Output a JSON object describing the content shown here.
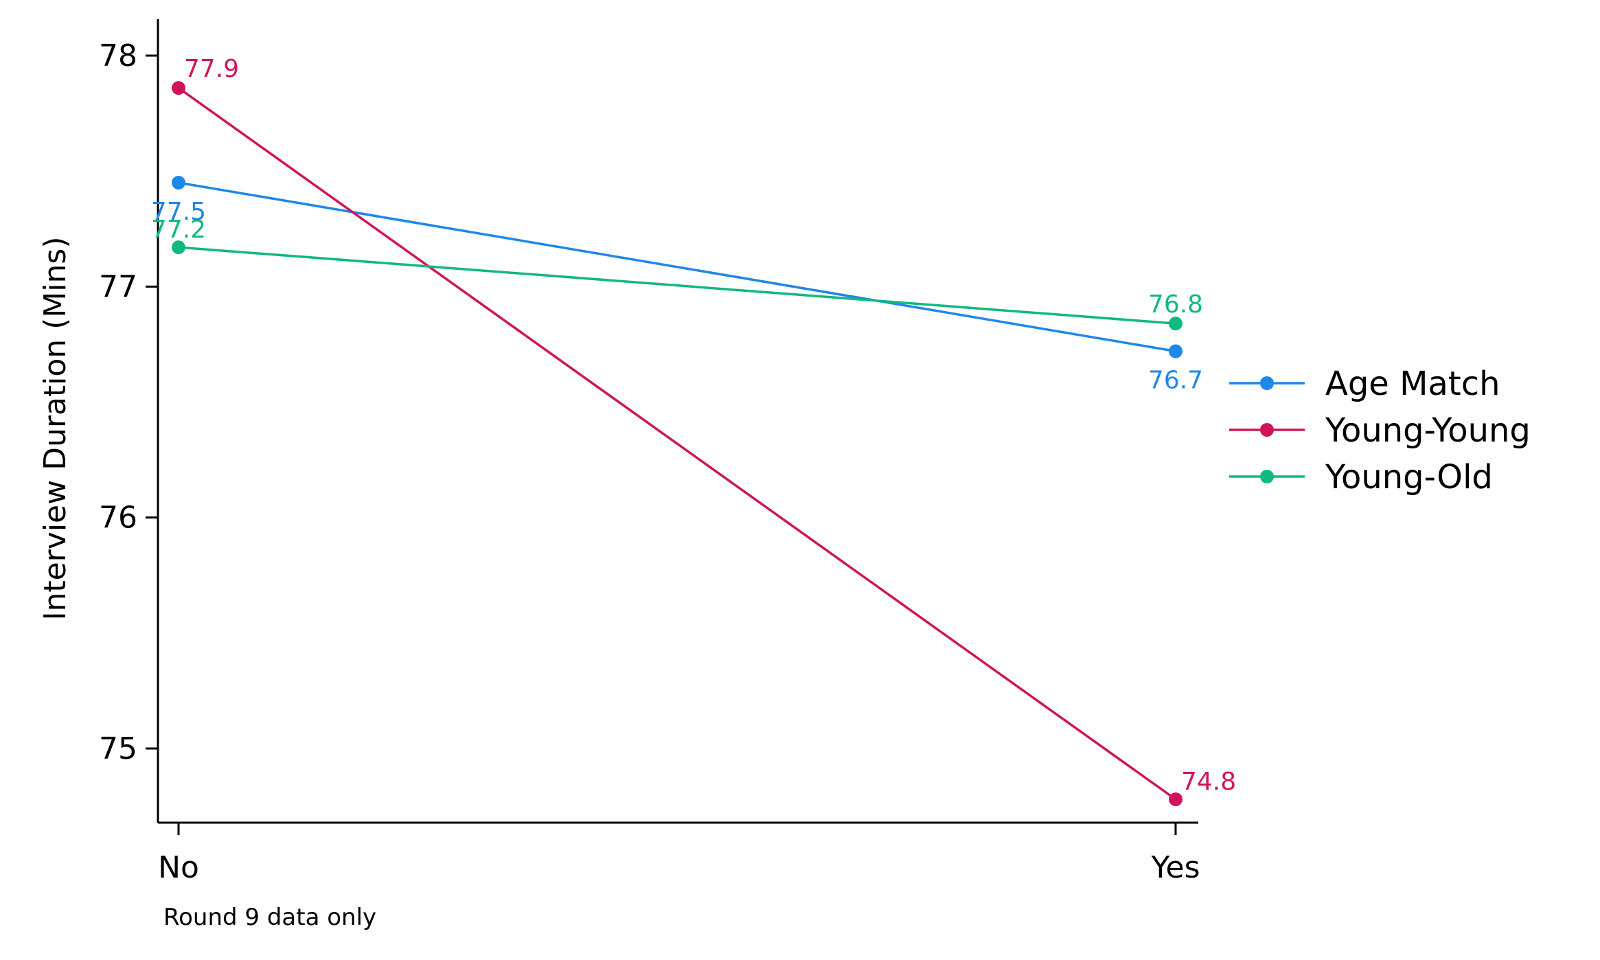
{
  "chart_data": {
    "type": "line",
    "x": [
      "No",
      "Yes"
    ],
    "ylabel": "Interview Duration (Mins)",
    "xlabel": "",
    "note": "Round 9 data only",
    "ylim": [
      74.68,
      78.1
    ],
    "yticks": [
      75,
      76,
      77,
      78
    ],
    "grid": false,
    "legend_position": "right",
    "series": [
      {
        "name": "Age Match",
        "color": "#1f87e8",
        "values": [
          77.45,
          76.72
        ],
        "labels": [
          "77.5",
          "76.7"
        ]
      },
      {
        "name": "Young-Young",
        "color": "#d0145a",
        "values": [
          77.86,
          74.78
        ],
        "labels": [
          "77.9",
          "74.8"
        ]
      },
      {
        "name": "Young-Old",
        "color": "#0fb981",
        "values": [
          77.17,
          76.84
        ],
        "labels": [
          "77.2",
          "76.8"
        ]
      }
    ]
  }
}
